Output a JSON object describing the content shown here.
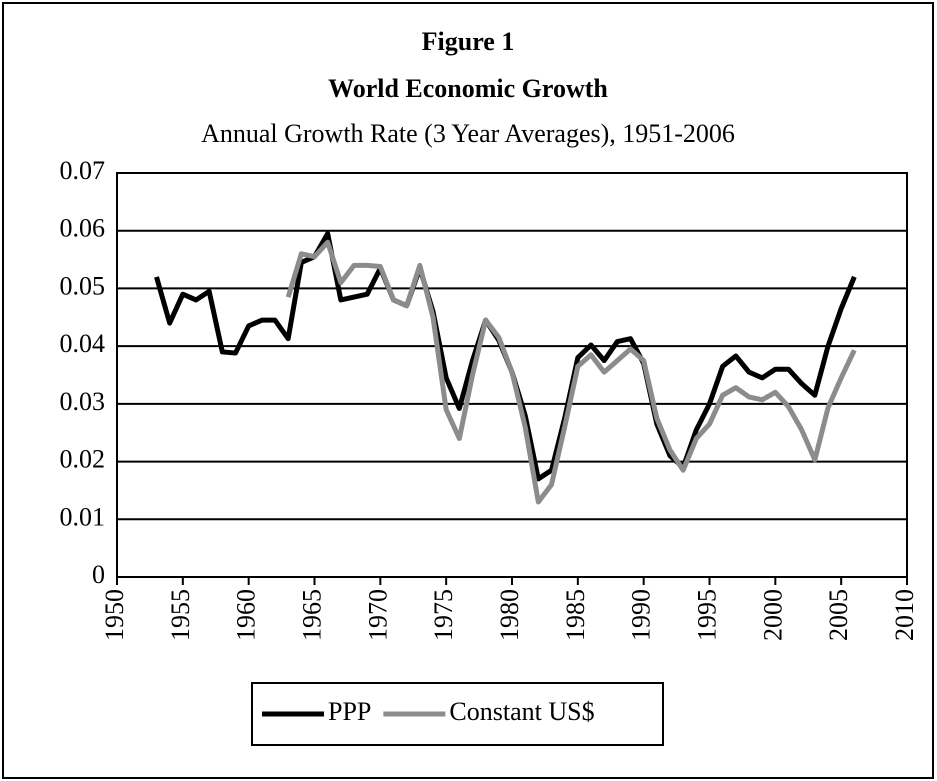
{
  "chart_data": {
    "type": "line",
    "title": "Figure 1",
    "subtitle": "World Economic Growth",
    "caption": "Annual Growth Rate (3 Year Averages), 1951-2006",
    "x": [
      1953,
      1954,
      1955,
      1956,
      1957,
      1958,
      1959,
      1960,
      1961,
      1962,
      1963,
      1964,
      1965,
      1966,
      1967,
      1968,
      1969,
      1970,
      1971,
      1972,
      1973,
      1974,
      1975,
      1976,
      1977,
      1978,
      1979,
      1980,
      1981,
      1982,
      1983,
      1984,
      1985,
      1986,
      1987,
      1988,
      1989,
      1990,
      1991,
      1992,
      1993,
      1994,
      1995,
      1996,
      1997,
      1998,
      1999,
      2000,
      2001,
      2002,
      2003,
      2004,
      2005,
      2006
    ],
    "series": [
      {
        "name": "PPP",
        "color": "#000000",
        "values": [
          0.052,
          0.044,
          0.049,
          0.048,
          0.0495,
          0.039,
          0.0388,
          0.0435,
          0.0445,
          0.0445,
          0.0413,
          0.0545,
          0.0555,
          0.0595,
          0.048,
          0.0485,
          0.049,
          0.0535,
          0.048,
          0.047,
          0.0535,
          0.046,
          0.0345,
          0.0292,
          0.0375,
          0.0445,
          0.041,
          0.0355,
          0.028,
          0.017,
          0.0185,
          0.0275,
          0.038,
          0.0402,
          0.0375,
          0.0408,
          0.0413,
          0.037,
          0.0265,
          0.021,
          0.019,
          0.0255,
          0.03,
          0.0365,
          0.0383,
          0.0355,
          0.0345,
          0.036,
          0.036,
          0.0335,
          0.0315,
          0.04,
          0.0465,
          0.052
        ]
      },
      {
        "name": "Constant US$",
        "color": "#8c8c8c",
        "values": [
          null,
          null,
          null,
          null,
          null,
          null,
          null,
          null,
          null,
          null,
          0.0485,
          0.056,
          0.0555,
          0.058,
          0.051,
          0.054,
          0.054,
          0.0538,
          0.048,
          0.047,
          0.054,
          0.045,
          0.029,
          0.024,
          0.035,
          0.0445,
          0.0415,
          0.0355,
          0.026,
          0.013,
          0.016,
          0.026,
          0.0365,
          0.0385,
          0.0355,
          0.0375,
          0.0395,
          0.0375,
          0.0275,
          0.022,
          0.0185,
          0.024,
          0.0265,
          0.0315,
          0.0328,
          0.0312,
          0.0307,
          0.032,
          0.0295,
          0.0255,
          0.0203,
          0.0293,
          0.0345,
          0.0393
        ]
      }
    ],
    "xlim": [
      1950,
      2010
    ],
    "xticks": [
      1950,
      1955,
      1960,
      1965,
      1970,
      1975,
      1980,
      1985,
      1990,
      1995,
      2000,
      2005,
      2010
    ],
    "ylim": [
      0,
      0.07
    ],
    "yticks": [
      0,
      0.01,
      0.02,
      0.03,
      0.04,
      0.05,
      0.06,
      0.07
    ],
    "grid": true,
    "legend": "bottom"
  }
}
